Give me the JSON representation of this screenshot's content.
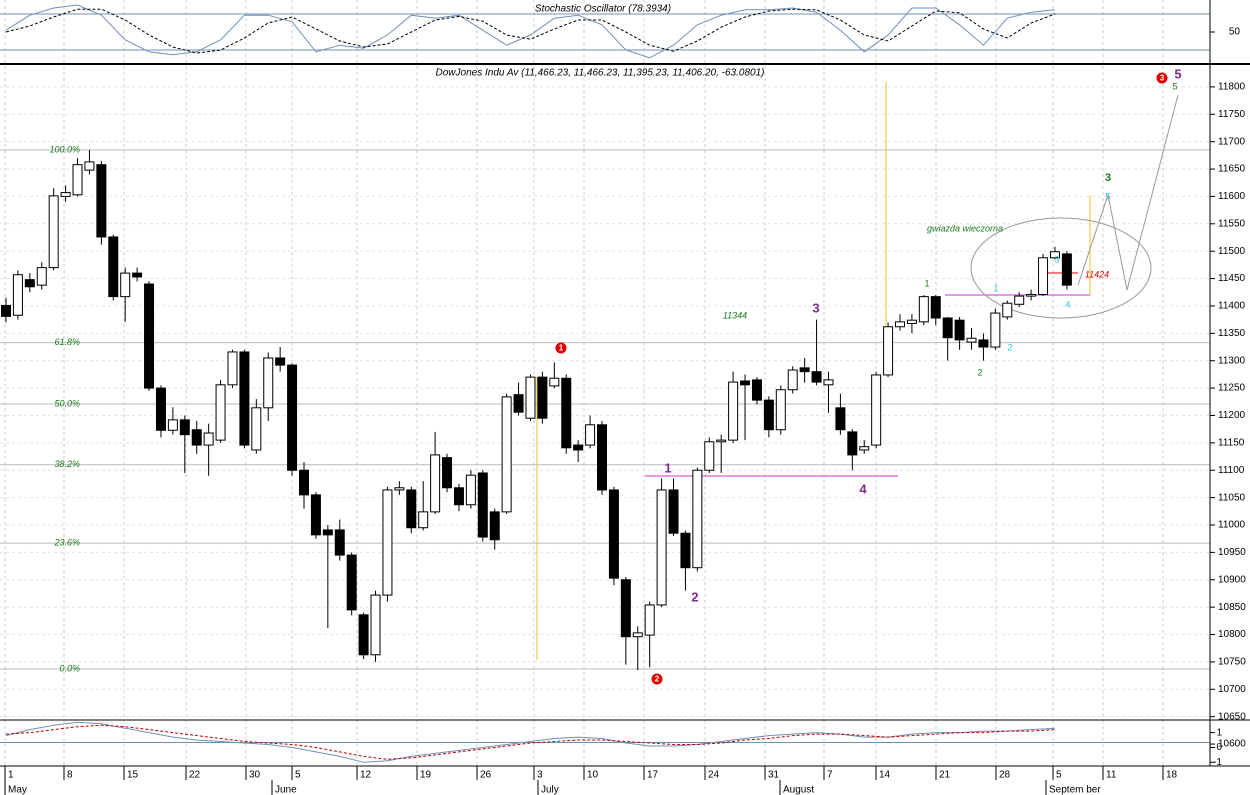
{
  "chart_data": [
    {
      "type": "line",
      "title": "Stochastic Oscillator (78.3934)",
      "ylim": [
        0,
        100
      ],
      "yticks": [
        50
      ],
      "reference_lines": [
        20,
        80
      ],
      "series": [
        {
          "color": "#7090b8",
          "dash": false,
          "values": [
            53,
            78,
            90,
            95,
            78,
            37,
            17,
            12,
            17,
            37,
            78,
            78,
            67,
            17,
            28,
            23,
            45,
            78,
            73,
            78,
            53,
            28,
            45,
            73,
            78,
            62,
            20,
            7,
            28,
            62,
            78,
            87,
            87,
            90,
            83,
            53,
            17,
            45,
            90,
            90,
            62,
            28,
            73,
            83,
            87
          ]
        },
        {
          "color": "#000000",
          "dash": true,
          "values": [
            50,
            60,
            75,
            88,
            88,
            70,
            45,
            25,
            15,
            20,
            40,
            65,
            75,
            55,
            35,
            25,
            30,
            50,
            70,
            76,
            68,
            45,
            38,
            55,
            70,
            70,
            50,
            28,
            18,
            35,
            58,
            75,
            85,
            88,
            87,
            70,
            45,
            35,
            60,
            85,
            82,
            55,
            40,
            65,
            80
          ]
        }
      ]
    },
    {
      "type": "candlestick",
      "title": "DowJones Indu Av (11,466.23, 11,466.23, 11,395.23, 11,406.20, -63.0801)",
      "ylim": [
        10580,
        11840
      ],
      "yticks": [
        10600,
        10650,
        10700,
        10750,
        10800,
        10850,
        10900,
        10950,
        11000,
        11050,
        11100,
        11150,
        11200,
        11250,
        11300,
        11350,
        11400,
        11450,
        11500,
        11550,
        11600,
        11650,
        11700,
        11750,
        11800
      ],
      "grid": true,
      "xtick_labels": [
        "1",
        "8",
        "15",
        "22",
        "30",
        "5",
        "12",
        "19",
        "26",
        "3",
        "10",
        "17",
        "24",
        "31",
        "7",
        "14",
        "21",
        "28",
        "5",
        "11",
        "18"
      ],
      "months": [
        "May",
        "June",
        "July",
        "August",
        "Septem ber"
      ],
      "fib_levels": [
        {
          "label": "100.0%",
          "price": 11685
        },
        {
          "label": "61.8%",
          "price": 11333
        },
        {
          "label": "50.0%",
          "price": 11221
        },
        {
          "label": "38.2%",
          "price": 11110
        },
        {
          "label": "23.6%",
          "price": 10967
        },
        {
          "label": "0.0%",
          "price": 10737
        }
      ],
      "annotations": [
        {
          "text": "11344",
          "color": "#1a7a1a"
        },
        {
          "text": "gwiazda wieczorna",
          "color": "#1a7a1a"
        },
        {
          "text": "11424",
          "color": "#e00000"
        },
        {
          "text": "1",
          "color": "#7b2d8b"
        },
        {
          "text": "2",
          "color": "#7b2d8b"
        },
        {
          "text": "3",
          "color": "#7b2d8b"
        },
        {
          "text": "4",
          "color": "#7b2d8b"
        },
        {
          "text": "5",
          "color": "#7b2d8b"
        },
        {
          "text": "1",
          "color": "#1a7a1a"
        },
        {
          "text": "2",
          "color": "#1a7a1a"
        },
        {
          "text": "3",
          "color": "#1a7a1a"
        },
        {
          "text": "5",
          "color": "#1a7a1a"
        },
        {
          "text": "1",
          "color": "#33c0e0"
        },
        {
          "text": "2",
          "color": "#33c0e0"
        },
        {
          "text": "3",
          "color": "#33c0e0"
        },
        {
          "text": "4",
          "color": "#33c0e0"
        },
        {
          "text": "5",
          "color": "#33c0e0"
        }
      ],
      "circled": [
        "1",
        "2",
        "3"
      ],
      "ohlc": [
        [
          11401,
          11415,
          11370,
          11381
        ],
        [
          11383,
          11465,
          11375,
          11457
        ],
        [
          11448,
          11460,
          11425,
          11435
        ],
        [
          11438,
          11480,
          11430,
          11470
        ],
        [
          11470,
          11615,
          11465,
          11601
        ],
        [
          11600,
          11620,
          11590,
          11607
        ],
        [
          11603,
          11670,
          11600,
          11658
        ],
        [
          11648,
          11685,
          11640,
          11663
        ],
        [
          11658,
          11665,
          11512,
          11526
        ],
        [
          11526,
          11530,
          11410,
          11417
        ],
        [
          11417,
          11470,
          11371,
          11460
        ],
        [
          11460,
          11470,
          11445,
          11453
        ],
        [
          11440,
          11445,
          11245,
          11250
        ],
        [
          11250,
          11255,
          11160,
          11173
        ],
        [
          11173,
          11215,
          11165,
          11192
        ],
        [
          11192,
          11200,
          11095,
          11165
        ],
        [
          11174,
          11190,
          11130,
          11146
        ],
        [
          11146,
          11185,
          11090,
          11168
        ],
        [
          11155,
          11265,
          11150,
          11256
        ],
        [
          11256,
          11320,
          11250,
          11316
        ],
        [
          11316,
          11320,
          11140,
          11146
        ],
        [
          11137,
          11230,
          11130,
          11214
        ],
        [
          11214,
          11315,
          11190,
          11305
        ],
        [
          11305,
          11325,
          11280,
          11292
        ],
        [
          11292,
          11295,
          11090,
          11100
        ],
        [
          11100,
          11115,
          11030,
          11055
        ],
        [
          11055,
          11060,
          10975,
          10982
        ],
        [
          10991,
          11000,
          10812,
          10982
        ],
        [
          10991,
          11010,
          10935,
          10945
        ],
        [
          10945,
          10950,
          10835,
          10845
        ],
        [
          10836,
          10840,
          10755,
          10763
        ],
        [
          10763,
          10880,
          10750,
          10872
        ],
        [
          10872,
          11070,
          10860,
          11064
        ],
        [
          11064,
          11080,
          11055,
          11068
        ],
        [
          11064,
          11070,
          10985,
          10995
        ],
        [
          10995,
          11080,
          10990,
          11024
        ],
        [
          11024,
          11170,
          11020,
          11128
        ],
        [
          11123,
          11130,
          11060,
          11068
        ],
        [
          11068,
          11075,
          11025,
          11037
        ],
        [
          11037,
          11100,
          11030,
          11091
        ],
        [
          11095,
          11100,
          10970,
          10978
        ],
        [
          11024,
          11030,
          10955,
          10973
        ],
        [
          11024,
          11240,
          11020,
          11234
        ],
        [
          11238,
          11260,
          11200,
          11206
        ],
        [
          11195,
          11275,
          11190,
          11270
        ],
        [
          11270,
          11280,
          11185,
          11195
        ],
        [
          11254,
          11297,
          11250,
          11268
        ],
        [
          11268,
          11275,
          11130,
          11141
        ],
        [
          11146,
          11155,
          11115,
          11137
        ],
        [
          11146,
          11200,
          11140,
          11183
        ],
        [
          11183,
          11190,
          11055,
          11064
        ],
        [
          11064,
          11070,
          10890,
          10903
        ],
        [
          10900,
          10905,
          10745,
          10796
        ],
        [
          10796,
          10815,
          10735,
          10803
        ],
        [
          10799,
          10860,
          10740,
          10854
        ],
        [
          10854,
          11085,
          10850,
          11064
        ],
        [
          11064,
          11085,
          10980,
          10985
        ],
        [
          10985,
          10990,
          10880,
          10922
        ],
        [
          10922,
          11105,
          10915,
          11100
        ],
        [
          11100,
          11160,
          11095,
          11152
        ],
        [
          11152,
          11165,
          11095,
          11155
        ],
        [
          11155,
          11280,
          11150,
          11261
        ],
        [
          11263,
          11275,
          11155,
          11256
        ],
        [
          11265,
          11270,
          11220,
          11228
        ],
        [
          11228,
          11235,
          11160,
          11174
        ],
        [
          11174,
          11255,
          11165,
          11247
        ],
        [
          11247,
          11290,
          11240,
          11283
        ],
        [
          11287,
          11305,
          11260,
          11280
        ],
        [
          11280,
          11375,
          11255,
          11261
        ],
        [
          11256,
          11280,
          11205,
          11265
        ],
        [
          11214,
          11240,
          11165,
          11174
        ],
        [
          11170,
          11175,
          11100,
          11128
        ],
        [
          11137,
          11155,
          11130,
          11143
        ],
        [
          11146,
          11280,
          11140,
          11274
        ],
        [
          11274,
          11370,
          11270,
          11362
        ],
        [
          11362,
          11385,
          11355,
          11371
        ],
        [
          11368,
          11385,
          11350,
          11374
        ],
        [
          11371,
          11420,
          11365,
          11417
        ],
        [
          11417,
          11420,
          11365,
          11378
        ],
        [
          11378,
          11380,
          11300,
          11342
        ],
        [
          11374,
          11380,
          11320,
          11338
        ],
        [
          11334,
          11360,
          11320,
          11341
        ],
        [
          11338,
          11350,
          11300,
          11325
        ],
        [
          11325,
          11395,
          11320,
          11387
        ],
        [
          11380,
          11410,
          11375,
          11405
        ],
        [
          11403,
          11425,
          11398,
          11418
        ],
        [
          11418,
          11430,
          11410,
          11421
        ],
        [
          11421,
          11495,
          11418,
          11488
        ],
        [
          11488,
          11508,
          11485,
          11499
        ],
        [
          11495,
          11500,
          11430,
          11438
        ]
      ]
    },
    {
      "type": "line",
      "ylim": [
        -1.25,
        1.85
      ],
      "yticks": [
        1,
        0,
        -1
      ],
      "series": [
        {
          "color": "#7090b8",
          "dash": false,
          "values": [
            0.8,
            1.2,
            1.5,
            1.7,
            1.6,
            1.3,
            1.0,
            0.7,
            0.5,
            0.4,
            0.3,
            0.2,
            0.0,
            -0.3,
            -0.6,
            -1.0,
            -0.9,
            -0.6,
            -0.4,
            -0.2,
            0.0,
            0.2,
            0.4,
            0.6,
            0.7,
            0.6,
            0.3,
            0.1,
            0.1,
            0.2,
            0.4,
            0.6,
            0.8,
            0.9,
            1.0,
            0.9,
            0.7,
            0.7,
            0.9,
            1.0,
            1.0,
            1.1,
            1.1,
            1.2,
            1.3
          ]
        },
        {
          "color": "#c00000",
          "dash": true,
          "values": [
            0.9,
            1.0,
            1.2,
            1.4,
            1.5,
            1.4,
            1.2,
            1.0,
            0.8,
            0.6,
            0.4,
            0.3,
            0.2,
            0.0,
            -0.3,
            -0.6,
            -0.8,
            -0.7,
            -0.5,
            -0.3,
            -0.1,
            0.1,
            0.3,
            0.4,
            0.5,
            0.5,
            0.4,
            0.3,
            0.2,
            0.2,
            0.3,
            0.5,
            0.6,
            0.8,
            0.9,
            0.9,
            0.8,
            0.7,
            0.8,
            0.9,
            1.0,
            1.0,
            1.1,
            1.1,
            1.2
          ]
        }
      ]
    }
  ]
}
